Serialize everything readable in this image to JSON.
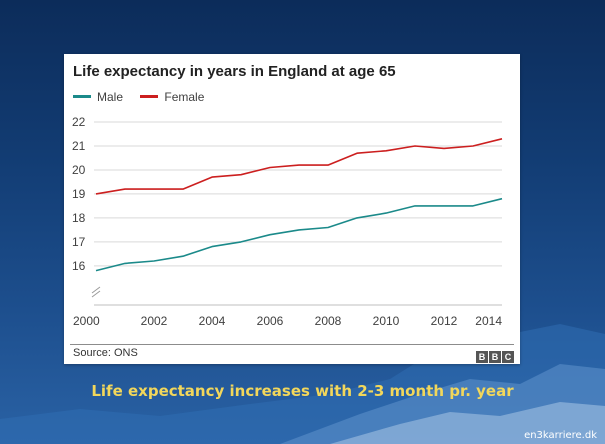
{
  "chart_data": {
    "type": "line",
    "title": "Life expectancy in years in England at age 65",
    "xlabel": "",
    "ylabel": "",
    "x": [
      2000,
      2001,
      2002,
      2003,
      2004,
      2005,
      2006,
      2007,
      2008,
      2009,
      2010,
      2011,
      2012,
      2013,
      2014
    ],
    "series": [
      {
        "name": "Male",
        "color": "#1b8a8a",
        "values": [
          15.8,
          16.1,
          16.2,
          16.4,
          16.8,
          17.0,
          17.3,
          17.5,
          17.6,
          18.0,
          18.2,
          18.5,
          18.5,
          18.5,
          18.8
        ]
      },
      {
        "name": "Female",
        "color": "#cc1f1f",
        "values": [
          19.0,
          19.2,
          19.2,
          19.2,
          19.7,
          19.8,
          20.1,
          20.2,
          20.2,
          20.7,
          20.8,
          21.0,
          20.9,
          21.0,
          21.3
        ]
      }
    ],
    "xticks": [
      2000,
      2002,
      2004,
      2006,
      2008,
      2010,
      2012,
      2014
    ],
    "yticks": [
      16,
      17,
      18,
      19,
      20,
      21,
      22
    ],
    "xlim": [
      2000,
      2014
    ],
    "ylim": [
      15.2,
      22
    ],
    "grid": true,
    "legend": "top-left",
    "axis_break": true,
    "source": "Source: ONS"
  },
  "branding": [
    "B",
    "B",
    "C"
  ],
  "caption": "Life expectancy increases with 2-3 month pr. year",
  "site": "en3karriere.dk"
}
